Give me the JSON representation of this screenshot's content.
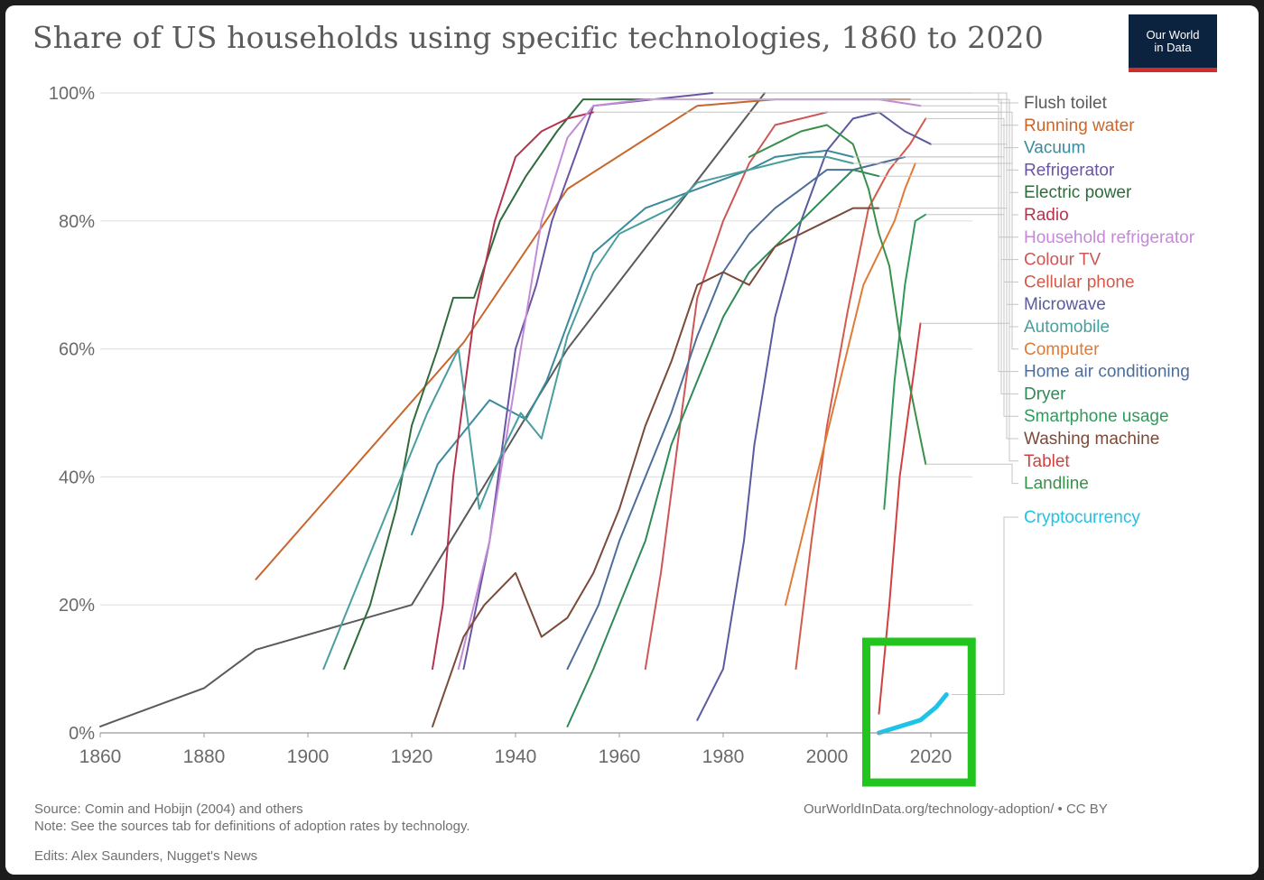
{
  "header": {
    "title": "Share of US households using specific technologies, 1860 to 2020",
    "logo_line1": "Our World",
    "logo_line2": "in Data",
    "logo_bg": "#0c2340",
    "logo_accent": "#cf2e2e"
  },
  "footer": {
    "source": "Source: Comin and Hobijn (2004) and others",
    "note": "Note: See the sources tab for definitions of adoption rates by technology.",
    "edits": "Edits: Alex Saunders, Nugget's News",
    "url": "OurWorldInData.org/technology-adoption/ • CC BY"
  },
  "annotation": {
    "highlight_color": "#22c51e",
    "target_series": "Cryptocurrency"
  },
  "chart_data": {
    "type": "line",
    "title": "Share of US households using specific technologies, 1860 to 2020",
    "xlabel": "",
    "ylabel": "",
    "xlim": [
      1860,
      2028
    ],
    "ylim": [
      0,
      100
    ],
    "x_ticks": [
      1860,
      1880,
      1900,
      1920,
      1940,
      1960,
      1980,
      2000,
      2020
    ],
    "y_ticks": [
      0,
      20,
      40,
      60,
      80,
      100
    ],
    "y_tick_labels": [
      "0%",
      "20%",
      "40%",
      "60%",
      "80%",
      "100%"
    ],
    "grid": "horizontal",
    "legend_position": "right",
    "series": [
      {
        "name": "Flush toilet",
        "color": "#5a5a5a",
        "points": [
          [
            1860,
            1
          ],
          [
            1880,
            7
          ],
          [
            1890,
            13
          ],
          [
            1920,
            20
          ],
          [
            1950,
            60
          ],
          [
            1988,
            100
          ]
        ]
      },
      {
        "name": "Running water",
        "color": "#c8662b",
        "points": [
          [
            1890,
            24
          ],
          [
            1930,
            61
          ],
          [
            1950,
            85
          ],
          [
            1975,
            98
          ],
          [
            1990,
            99
          ],
          [
            2016,
            99
          ]
        ]
      },
      {
        "name": "Vacuum",
        "color": "#3a8a9e",
        "points": [
          [
            1920,
            31
          ],
          [
            1925,
            42
          ],
          [
            1935,
            52
          ],
          [
            1942,
            49
          ],
          [
            1946,
            55
          ],
          [
            1955,
            75
          ],
          [
            1965,
            82
          ],
          [
            1975,
            85
          ],
          [
            1985,
            88
          ],
          [
            1990,
            90
          ],
          [
            2000,
            91
          ],
          [
            2005,
            90
          ]
        ]
      },
      {
        "name": "Refrigerator",
        "color": "#6a55a5",
        "points": [
          [
            1930,
            10
          ],
          [
            1935,
            30
          ],
          [
            1940,
            60
          ],
          [
            1944,
            70
          ],
          [
            1947,
            80
          ],
          [
            1955,
            98
          ],
          [
            1978,
            100
          ]
        ]
      },
      {
        "name": "Electric power",
        "color": "#2f6b3d",
        "points": [
          [
            1907,
            10
          ],
          [
            1912,
            20
          ],
          [
            1917,
            35
          ],
          [
            1920,
            48
          ],
          [
            1925,
            60
          ],
          [
            1928,
            68
          ],
          [
            1932,
            68
          ],
          [
            1937,
            80
          ],
          [
            1942,
            87
          ],
          [
            1948,
            94
          ],
          [
            1953,
            99
          ],
          [
            1966,
            99
          ]
        ]
      },
      {
        "name": "Radio",
        "color": "#b5334d",
        "points": [
          [
            1924,
            10
          ],
          [
            1926,
            20
          ],
          [
            1928,
            40
          ],
          [
            1932,
            65
          ],
          [
            1936,
            80
          ],
          [
            1940,
            90
          ],
          [
            1945,
            94
          ],
          [
            1950,
            96
          ],
          [
            1955,
            97
          ]
        ]
      },
      {
        "name": "Household refrigerator",
        "color": "#c48ad8",
        "points": [
          [
            1929,
            10
          ],
          [
            1935,
            30
          ],
          [
            1940,
            55
          ],
          [
            1945,
            80
          ],
          [
            1950,
            93
          ],
          [
            1955,
            98
          ],
          [
            1965,
            99
          ],
          [
            1990,
            99
          ],
          [
            2010,
            99
          ],
          [
            2018,
            98
          ]
        ]
      },
      {
        "name": "Colour TV",
        "color": "#cf5555",
        "points": [
          [
            1965,
            10
          ],
          [
            1968,
            25
          ],
          [
            1972,
            50
          ],
          [
            1975,
            68
          ],
          [
            1980,
            80
          ],
          [
            1985,
            89
          ],
          [
            1990,
            95
          ],
          [
            1995,
            96
          ],
          [
            2000,
            97
          ]
        ]
      },
      {
        "name": "Cellular phone",
        "color": "#d45a4a",
        "points": [
          [
            1994,
            10
          ],
          [
            1997,
            30
          ],
          [
            2000,
            48
          ],
          [
            2004,
            66
          ],
          [
            2008,
            82
          ],
          [
            2012,
            88
          ],
          [
            2016,
            92
          ],
          [
            2019,
            96
          ]
        ]
      },
      {
        "name": "Microwave",
        "color": "#5a5aa0",
        "points": [
          [
            1975,
            2
          ],
          [
            1980,
            10
          ],
          [
            1984,
            30
          ],
          [
            1986,
            45
          ],
          [
            1990,
            65
          ],
          [
            1995,
            80
          ],
          [
            2000,
            91
          ],
          [
            2005,
            96
          ],
          [
            2010,
            97
          ],
          [
            2015,
            94
          ],
          [
            2020,
            92
          ]
        ]
      },
      {
        "name": "Automobile",
        "color": "#4a9e9e",
        "points": [
          [
            1903,
            10
          ],
          [
            1908,
            20
          ],
          [
            1913,
            30
          ],
          [
            1918,
            40
          ],
          [
            1923,
            50
          ],
          [
            1929,
            60
          ],
          [
            1933,
            35
          ],
          [
            1938,
            45
          ],
          [
            1941,
            50
          ],
          [
            1945,
            46
          ],
          [
            1950,
            62
          ],
          [
            1955,
            72
          ],
          [
            1960,
            78
          ],
          [
            1965,
            80
          ],
          [
            1970,
            82
          ],
          [
            1975,
            86
          ],
          [
            1980,
            87
          ],
          [
            1985,
            88
          ],
          [
            1990,
            89
          ],
          [
            1995,
            90
          ],
          [
            2000,
            90
          ],
          [
            2005,
            89
          ]
        ]
      },
      {
        "name": "Computer",
        "color": "#e07a36",
        "points": [
          [
            1992,
            20
          ],
          [
            1995,
            30
          ],
          [
            1998,
            40
          ],
          [
            2001,
            50
          ],
          [
            2004,
            60
          ],
          [
            2007,
            70
          ],
          [
            2010,
            75
          ],
          [
            2013,
            80
          ],
          [
            2015,
            85
          ],
          [
            2017,
            89
          ]
        ]
      },
      {
        "name": "Home air conditioning",
        "color": "#4e6e9a",
        "points": [
          [
            1950,
            10
          ],
          [
            1953,
            15
          ],
          [
            1956,
            20
          ],
          [
            1960,
            30
          ],
          [
            1965,
            40
          ],
          [
            1970,
            50
          ],
          [
            1975,
            62
          ],
          [
            1980,
            72
          ],
          [
            1985,
            78
          ],
          [
            1990,
            82
          ],
          [
            1995,
            85
          ],
          [
            2000,
            88
          ],
          [
            2005,
            88
          ],
          [
            2010,
            89
          ],
          [
            2015,
            90
          ]
        ]
      },
      {
        "name": "Dryer",
        "color": "#2e8a56",
        "points": [
          [
            1950,
            1
          ],
          [
            1955,
            10
          ],
          [
            1960,
            20
          ],
          [
            1965,
            30
          ],
          [
            1970,
            45
          ],
          [
            1975,
            55
          ],
          [
            1980,
            65
          ],
          [
            1985,
            72
          ],
          [
            1990,
            76
          ],
          [
            1995,
            80
          ],
          [
            2000,
            84
          ],
          [
            2005,
            88
          ],
          [
            2010,
            87
          ]
        ]
      },
      {
        "name": "Smartphone usage",
        "color": "#2f9a5a",
        "points": [
          [
            2011,
            35
          ],
          [
            2013,
            55
          ],
          [
            2015,
            70
          ],
          [
            2017,
            80
          ],
          [
            2019,
            81
          ]
        ]
      },
      {
        "name": "Washing machine",
        "color": "#7a4a3a",
        "points": [
          [
            1924,
            1
          ],
          [
            1927,
            8
          ],
          [
            1930,
            15
          ],
          [
            1934,
            20
          ],
          [
            1940,
            25
          ],
          [
            1945,
            15
          ],
          [
            1950,
            18
          ],
          [
            1955,
            25
          ],
          [
            1960,
            35
          ],
          [
            1965,
            48
          ],
          [
            1970,
            58
          ],
          [
            1975,
            70
          ],
          [
            1980,
            72
          ],
          [
            1985,
            70
          ],
          [
            1990,
            76
          ],
          [
            1995,
            78
          ],
          [
            2000,
            80
          ],
          [
            2005,
            82
          ],
          [
            2010,
            82
          ]
        ]
      },
      {
        "name": "Tablet",
        "color": "#d04040",
        "points": [
          [
            2010,
            3
          ],
          [
            2012,
            20
          ],
          [
            2014,
            40
          ],
          [
            2016,
            52
          ],
          [
            2018,
            64
          ]
        ]
      },
      {
        "name": "Landline",
        "color": "#3a8f4a",
        "points": [
          [
            1985,
            90
          ],
          [
            1990,
            92
          ],
          [
            1995,
            94
          ],
          [
            2000,
            95
          ],
          [
            2005,
            92
          ],
          [
            2008,
            85
          ],
          [
            2010,
            78
          ],
          [
            2012,
            73
          ],
          [
            2014,
            62
          ],
          [
            2016,
            54
          ],
          [
            2018,
            46
          ],
          [
            2019,
            42
          ]
        ]
      },
      {
        "name": "Cryptocurrency",
        "color": "#1fc3e6",
        "points": [
          [
            2010,
            0
          ],
          [
            2014,
            1
          ],
          [
            2018,
            2
          ],
          [
            2021,
            4
          ],
          [
            2023,
            6
          ]
        ]
      }
    ]
  }
}
